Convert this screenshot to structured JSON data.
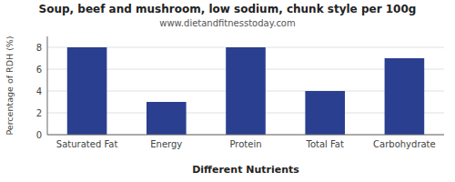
{
  "chart_data": {
    "type": "bar",
    "title": "Soup, beef and mushroom, low sodium, chunk style per 100g",
    "subtitle": "www.dietandfitnesstoday.com",
    "xlabel": "Different Nutrients",
    "ylabel": "Percentage of RDH (%)",
    "categories": [
      "Saturated Fat",
      "Energy",
      "Protein",
      "Total Fat",
      "Carbohydrate"
    ],
    "values": [
      8.0,
      3.0,
      8.0,
      4.0,
      7.0
    ],
    "color": "#2a3f8f",
    "ylim": [
      0,
      9
    ],
    "yticks": [
      0,
      2,
      4,
      6,
      8
    ],
    "grid": true
  }
}
